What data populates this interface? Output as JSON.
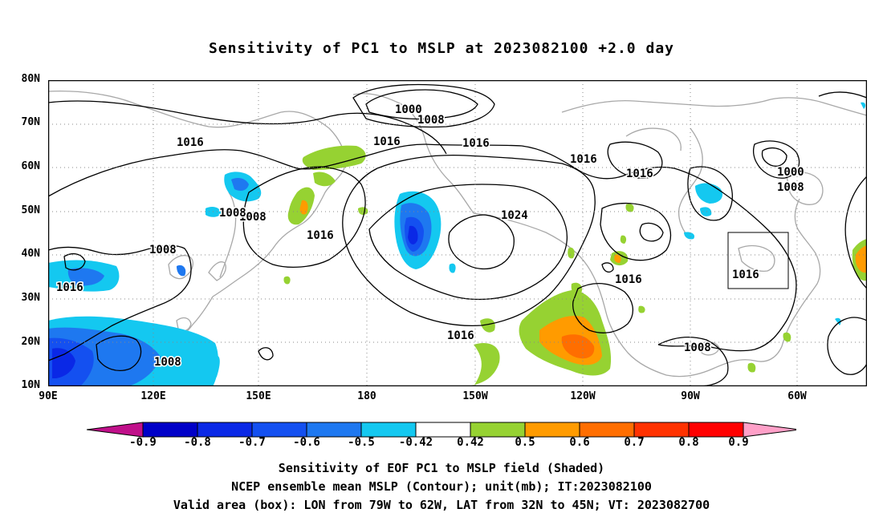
{
  "title": "Sensitivity of PC1 to MSLP at 2023082100 +2.0 day",
  "axes": {
    "lat_labels": [
      "80N",
      "70N",
      "60N",
      "50N",
      "40N",
      "30N",
      "20N",
      "10N"
    ],
    "lon_labels": [
      "90E",
      "120E",
      "150E",
      "180",
      "150W",
      "120W",
      "90W",
      "60W"
    ],
    "lon_range": [
      "90E",
      "50W"
    ],
    "lat_range": [
      "10N",
      "80N"
    ],
    "grid": "dotted"
  },
  "contour_labels": [
    "1000",
    "1008",
    "1016",
    "1016",
    "1016",
    "1016",
    "1016",
    "1008",
    "1000",
    "1008",
    "1016",
    "1008",
    "1008",
    "1016",
    "1024",
    "1016",
    "1016",
    "1008",
    "1016",
    "1008"
  ],
  "colorbar": {
    "labels": [
      "-0.9",
      "-0.8",
      "-0.7",
      "-0.6",
      "-0.5",
      "-0.42",
      "0.42",
      "0.5",
      "0.6",
      "0.7",
      "0.8",
      "0.9"
    ],
    "colors": [
      "#c0108a",
      "#0000c8",
      "#0a28e6",
      "#1450f0",
      "#1e78f0",
      "#14c8f0",
      "#ffffff",
      "#96d232",
      "#ff9b00",
      "#ff6e00",
      "#ff3200",
      "#ff0000",
      "#ffa0c8"
    ]
  },
  "footer": {
    "line1": "Sensitivity of EOF PC1 to MSLP field (Shaded)",
    "line2": "NCEP ensemble mean MSLP (Contour); unit(mb); IT:2023082100",
    "line3": "Valid area (box): LON from 79W to 62W, LAT from 32N to 45N; VT: 2023082700"
  },
  "valid_box": {
    "lon_from": "79W",
    "lon_to": "62W",
    "lat_from": "32N",
    "lat_to": "45N"
  }
}
